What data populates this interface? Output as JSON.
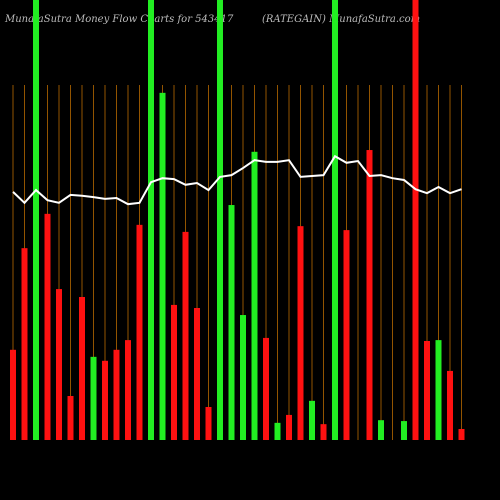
{
  "chart_data": {
    "type": "bar",
    "title": "MunafaSutra  Money Flow  Charts for 543417",
    "subtitle": "(RATEGAIN) MunafaSutra.com",
    "ylim": [
      0,
      100
    ],
    "up_color": "#22ee22",
    "down_color": "#ff1111",
    "line_color": "#ffffff",
    "grid_color": "#b86a00",
    "directions": [
      "down",
      "down",
      "up",
      "down",
      "down",
      "down",
      "down",
      "up",
      "down",
      "down",
      "down",
      "down",
      "up",
      "up",
      "down",
      "down",
      "down",
      "down",
      "up",
      "up",
      "up",
      "up",
      "down",
      "up",
      "down",
      "down",
      "up",
      "down",
      "up",
      "down",
      null,
      "down",
      "up",
      null,
      "up",
      "down",
      "down",
      "up",
      "down",
      "down"
    ],
    "values": [
      20.5,
      43.6,
      100,
      51.4,
      34.3,
      10,
      32.5,
      18.9,
      18,
      20.5,
      22.7,
      48.9,
      100,
      78.9,
      30.7,
      47.3,
      30,
      7.5,
      100,
      53.4,
      28.4,
      65.5,
      23.2,
      3.9,
      5.7,
      48.6,
      8.9,
      3.6,
      100,
      47.7,
      null,
      65.9,
      4.5,
      null,
      4.3,
      100,
      22.5,
      22.7,
      15.7,
      2.5
    ],
    "line_values": [
      56.4,
      53.9,
      56.8,
      54.5,
      53.9,
      55.7,
      55.5,
      55.2,
      54.8,
      55,
      53.6,
      53.9,
      58.6,
      59.5,
      59.3,
      58,
      58.4,
      56.8,
      59.8,
      60.2,
      61.8,
      63.6,
      63.2,
      63.2,
      63.6,
      59.8,
      60,
      60.2,
      64.5,
      63,
      63.4,
      60,
      60.2,
      59.5,
      59.1,
      57,
      56.1,
      57.5,
      56.1,
      57
    ]
  }
}
